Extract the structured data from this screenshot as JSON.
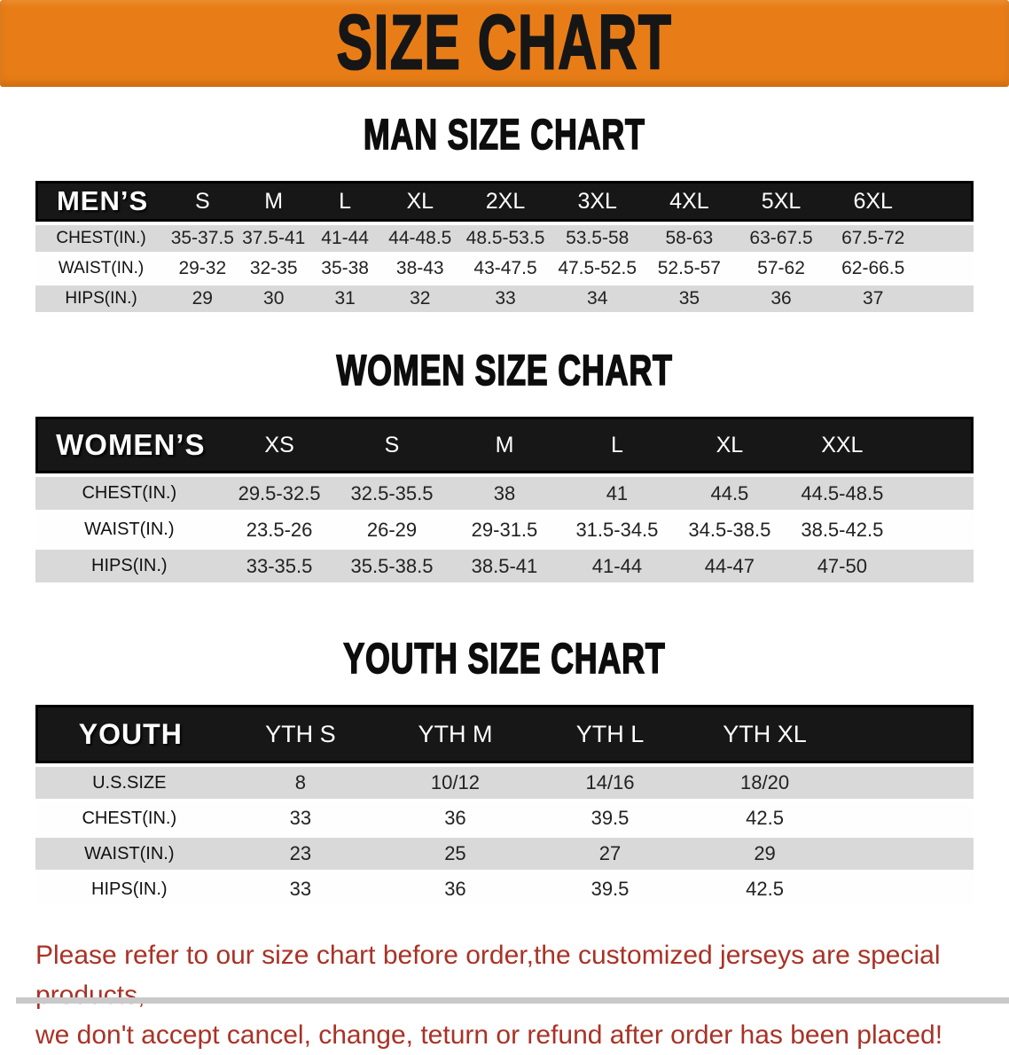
{
  "banner": {
    "title": "SIZE CHART",
    "bg_color": "#e87d17",
    "text_color": "#161616"
  },
  "sections": [
    {
      "heading": "MAN SIZE CHART",
      "header_label": "MEN’S",
      "columns": [
        "S",
        "M",
        "L",
        "XL",
        "2XL",
        "3XL",
        "4XL",
        "5XL",
        "6XL"
      ],
      "rows": [
        {
          "label": "CHEST(IN.)",
          "values": [
            "35-37.5",
            "37.5-41",
            "41-44",
            "44-48.5",
            "48.5-53.5",
            "53.5-58",
            "58-63",
            "63-67.5",
            "67.5-72"
          ]
        },
        {
          "label": "WAIST(IN.)",
          "values": [
            "29-32",
            "32-35",
            "35-38",
            "38-43",
            "43-47.5",
            "47.5-52.5",
            "52.5-57",
            "57-62",
            "62-66.5"
          ]
        },
        {
          "label": "HIPS(IN.)",
          "values": [
            "29",
            "30",
            "31",
            "32",
            "33",
            "34",
            "35",
            "36",
            "37"
          ]
        }
      ]
    },
    {
      "heading": "WOMEN SIZE CHART",
      "header_label": "WOMEN’S",
      "columns": [
        "XS",
        "S",
        "M",
        "L",
        "XL",
        "XXL"
      ],
      "rows": [
        {
          "label": "CHEST(IN.)",
          "values": [
            "29.5-32.5",
            "32.5-35.5",
            "38",
            "41",
            "44.5",
            "44.5-48.5"
          ]
        },
        {
          "label": "WAIST(IN.)",
          "values": [
            "23.5-26",
            "26-29",
            "29-31.5",
            "31.5-34.5",
            "34.5-38.5",
            "38.5-42.5"
          ]
        },
        {
          "label": "HIPS(IN.)",
          "values": [
            "33-35.5",
            "35.5-38.5",
            "38.5-41",
            "41-44",
            "44-47",
            "47-50"
          ]
        }
      ]
    },
    {
      "heading": "YOUTH SIZE CHART",
      "header_label": "YOUTH",
      "columns": [
        "YTH S",
        "YTH M",
        "YTH L",
        "YTH XL"
      ],
      "rows": [
        {
          "label": "U.S.SIZE",
          "values": [
            "8",
            "10/12",
            "14/16",
            "18/20"
          ]
        },
        {
          "label": "CHEST(IN.)",
          "values": [
            "33",
            "36",
            "39.5",
            "42.5"
          ]
        },
        {
          "label": "WAIST(IN.)",
          "values": [
            "23",
            "25",
            "27",
            "29"
          ]
        },
        {
          "label": "HIPS(IN.)",
          "values": [
            "33",
            "36",
            "39.5",
            "42.5"
          ]
        }
      ]
    }
  ],
  "table_colors": {
    "header_row_bg": "#171717",
    "header_row_text": "#ffffff",
    "shaded_row_bg": "#d9d9d9",
    "plain_row_bg": "#fefefe"
  },
  "footer": {
    "line1": "Please refer to our size chart before order,the customized jerseys are special products,",
    "line2": "we don't accept cancel, change, teturn or refund after order has been placed!",
    "text_color": "#a93226"
  }
}
